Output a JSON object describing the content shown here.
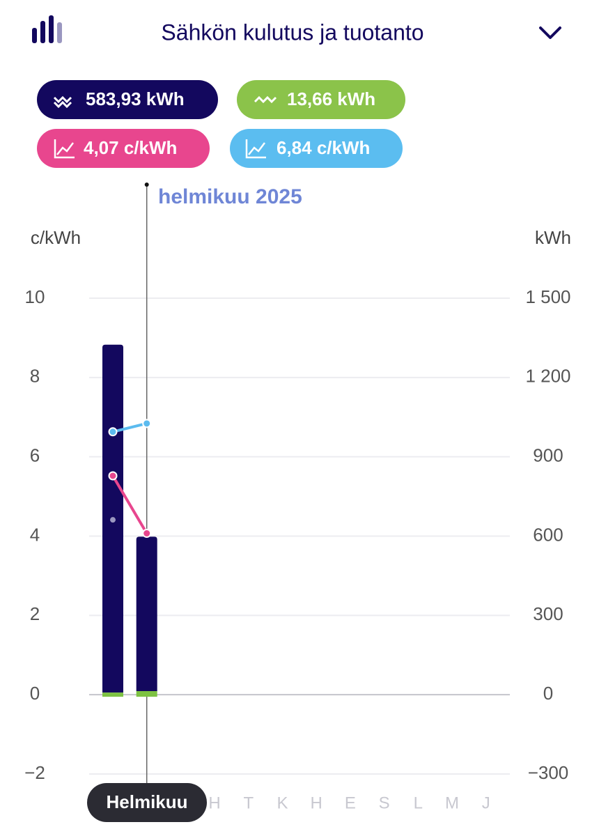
{
  "header": {
    "title": "Sähkön kulutus ja tuotanto"
  },
  "summary": [
    "583,93 kWh",
    "13,66 kWh",
    "4,07 c/kWh",
    "6,84 c/kWh"
  ],
  "chart_data": {
    "type": "bar",
    "selected_label": "helmikuu 2025",
    "tooltip": "Helmikuu",
    "y_label": "c/kWh",
    "y2_label": "kWh",
    "categories": [
      null,
      null,
      null,
      "H",
      "T",
      "K",
      "H",
      "E",
      "S",
      "L",
      "M",
      "J"
    ],
    "ylim": [
      -2,
      10
    ],
    "yticks": [
      {
        "value": -2,
        "label": "−2"
      },
      0,
      2,
      4,
      6,
      8,
      10
    ],
    "y2lim": [
      -300,
      1500
    ],
    "y2ticks": [
      {
        "value": -300,
        "label": "−300"
      },
      0,
      300,
      600,
      900,
      {
        "value": 1200,
        "label": "1 200"
      },
      {
        "value": 1500,
        "label": "1 500"
      }
    ],
    "grid": true,
    "series": [
      {
        "type": "bar",
        "axis": "y2",
        "color": "#7dc242",
        "values": [
          8,
          13.66,
          null,
          null,
          null,
          null,
          null,
          null,
          null,
          null,
          null,
          null
        ]
      },
      {
        "type": "bar",
        "axis": "y2",
        "color": "#13085e",
        "values": [
          1316,
          583.93,
          null,
          null,
          null,
          null,
          null,
          null,
          null,
          null,
          null,
          null
        ]
      },
      {
        "type": "line",
        "axis": "y",
        "color": "#e8468e",
        "values": [
          5.52,
          4.07,
          null,
          null,
          null,
          null,
          null,
          null,
          null,
          null,
          null,
          null
        ]
      },
      {
        "type": "line",
        "axis": "y",
        "color": "#5bbbef",
        "values": [
          6.63,
          6.84,
          null,
          null,
          null,
          null,
          null,
          null,
          null,
          null,
          null,
          null
        ]
      },
      {
        "type": "dot",
        "axis": "y",
        "color": "#9a97c0",
        "values": [
          4.41,
          null,
          null,
          null,
          null,
          null,
          null,
          null,
          null,
          null,
          null,
          null
        ]
      }
    ]
  }
}
